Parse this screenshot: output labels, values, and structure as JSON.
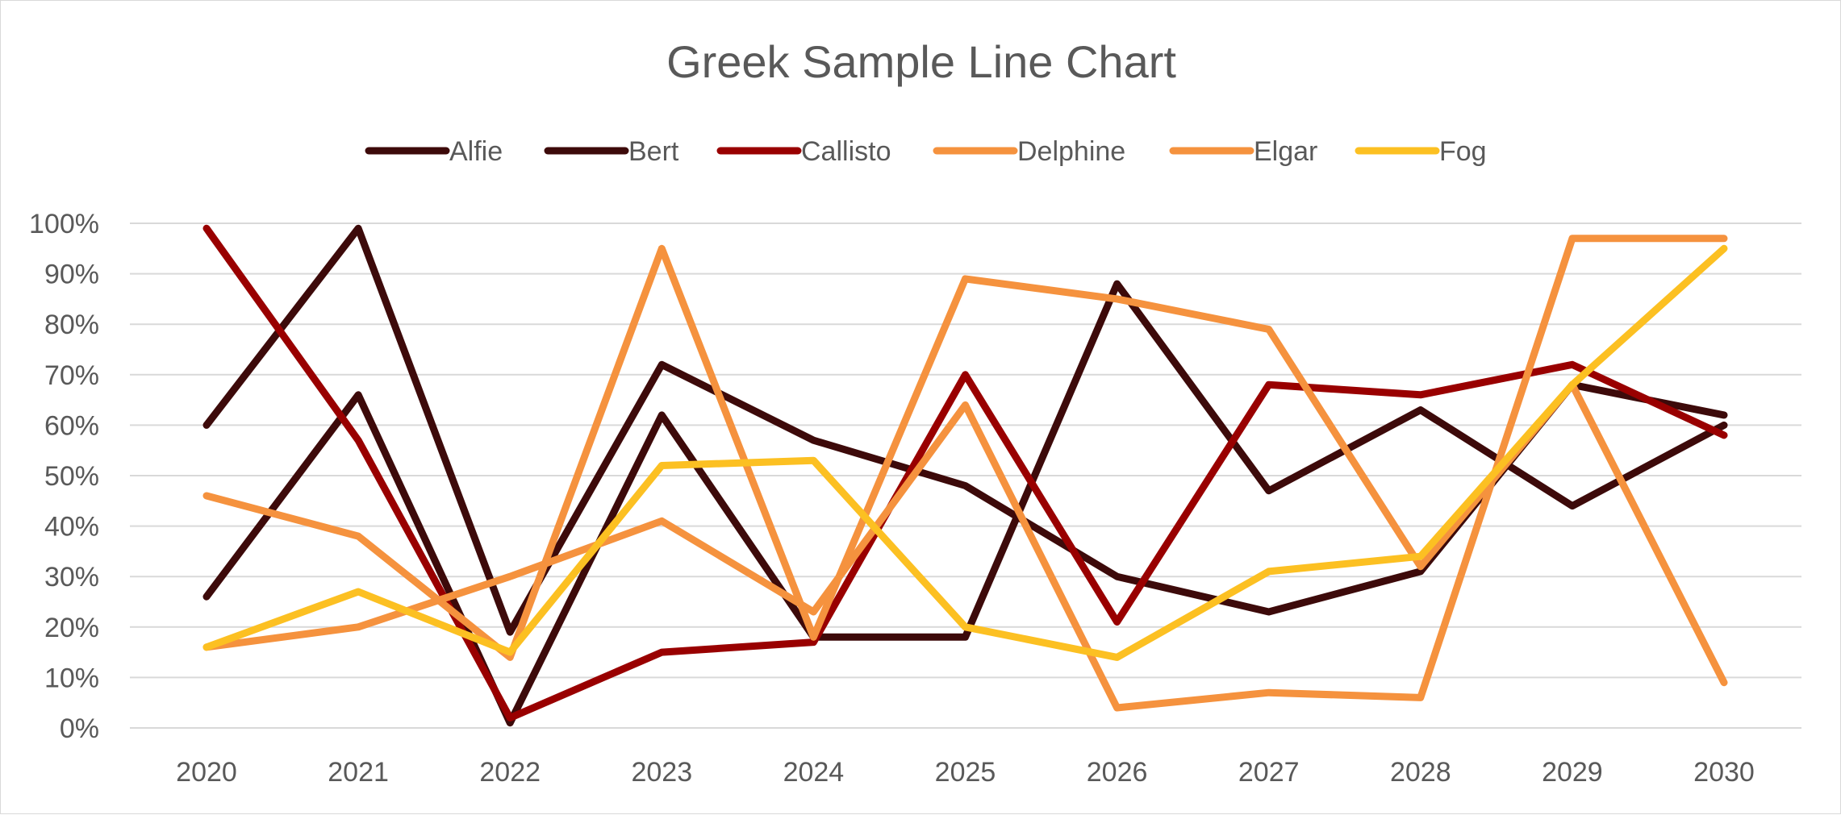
{
  "chart_data": {
    "type": "line",
    "title": "Greek Sample Line Chart",
    "xlabel": "",
    "ylabel": "",
    "x": [
      "2020",
      "2021",
      "2022",
      "2023",
      "2024",
      "2025",
      "2026",
      "2027",
      "2028",
      "2029",
      "2030"
    ],
    "ylim": [
      0,
      100
    ],
    "yticks": [
      "0%",
      "10%",
      "20%",
      "30%",
      "40%",
      "50%",
      "60%",
      "70%",
      "80%",
      "90%",
      "100%"
    ],
    "grid": true,
    "legend_position": "top",
    "series": [
      {
        "name": "Alfie",
        "color": "#3d0a0a",
        "values": [
          60,
          99,
          19,
          72,
          57,
          48,
          30,
          23,
          31,
          68,
          62
        ]
      },
      {
        "name": "Bert",
        "color": "#3d0a0a",
        "values": [
          26,
          66,
          1,
          62,
          18,
          18,
          88,
          47,
          63,
          44,
          60
        ]
      },
      {
        "name": "Callisto",
        "color": "#990000",
        "values": [
          99,
          57,
          2,
          15,
          17,
          70,
          21,
          68,
          66,
          72,
          58
        ]
      },
      {
        "name": "Delphine",
        "color": "#f5923e",
        "values": [
          46,
          38,
          14,
          95,
          18,
          89,
          85,
          79,
          32,
          68,
          9
        ]
      },
      {
        "name": "Elgar",
        "color": "#f5923e",
        "values": [
          16,
          20,
          30,
          41,
          23,
          64,
          4,
          7,
          6,
          97,
          97
        ]
      },
      {
        "name": "Fog",
        "color": "#fcc022",
        "values": [
          16,
          27,
          15,
          52,
          53,
          20,
          14,
          31,
          34,
          68,
          95
        ]
      }
    ]
  }
}
